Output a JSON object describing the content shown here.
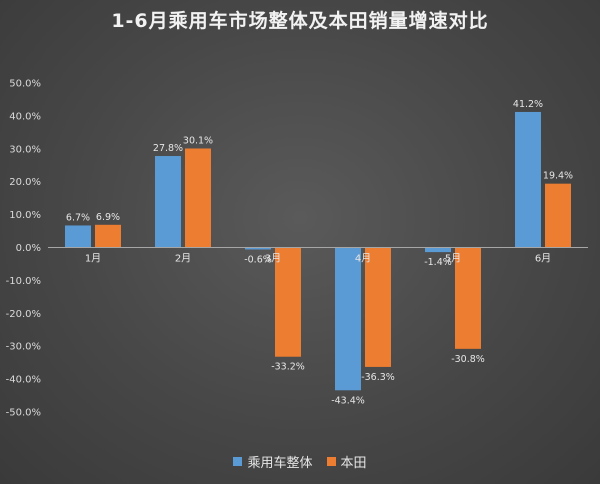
{
  "chart_data": {
    "type": "bar",
    "title": "1-6月乘用车市场整体及本田销量增速对比",
    "categories": [
      "1月",
      "2月",
      "3月",
      "4月",
      "5月",
      "6月"
    ],
    "series": [
      {
        "name": "乘用车整体",
        "color": "#5b9bd5",
        "values": [
          6.7,
          27.8,
          -0.6,
          -43.4,
          -1.4,
          41.2
        ],
        "labels": [
          "6.7%",
          "27.8%",
          "-0.6%",
          "-43.4%",
          "-1.4%",
          "41.2%"
        ]
      },
      {
        "name": "本田",
        "color": "#ed7d31",
        "values": [
          6.9,
          30.1,
          -33.2,
          -36.3,
          -30.8,
          19.4
        ],
        "labels": [
          "6.9%",
          "30.1%",
          "-33.2%",
          "-36.3%",
          "-30.8%",
          "19.4%"
        ]
      }
    ],
    "ylim": [
      -50,
      50
    ],
    "yticks": [
      50,
      40,
      30,
      20,
      10,
      0,
      -10,
      -20,
      -30,
      -40,
      -50
    ],
    "ytick_labels": [
      "50.0%",
      "40.0%",
      "30.0%",
      "20.0%",
      "10.0%",
      "0.0%",
      "-10.0%",
      "-20.0%",
      "-30.0%",
      "-40.0%",
      "-50.0%"
    ],
    "gridlines": false,
    "legend_position": "bottom"
  }
}
